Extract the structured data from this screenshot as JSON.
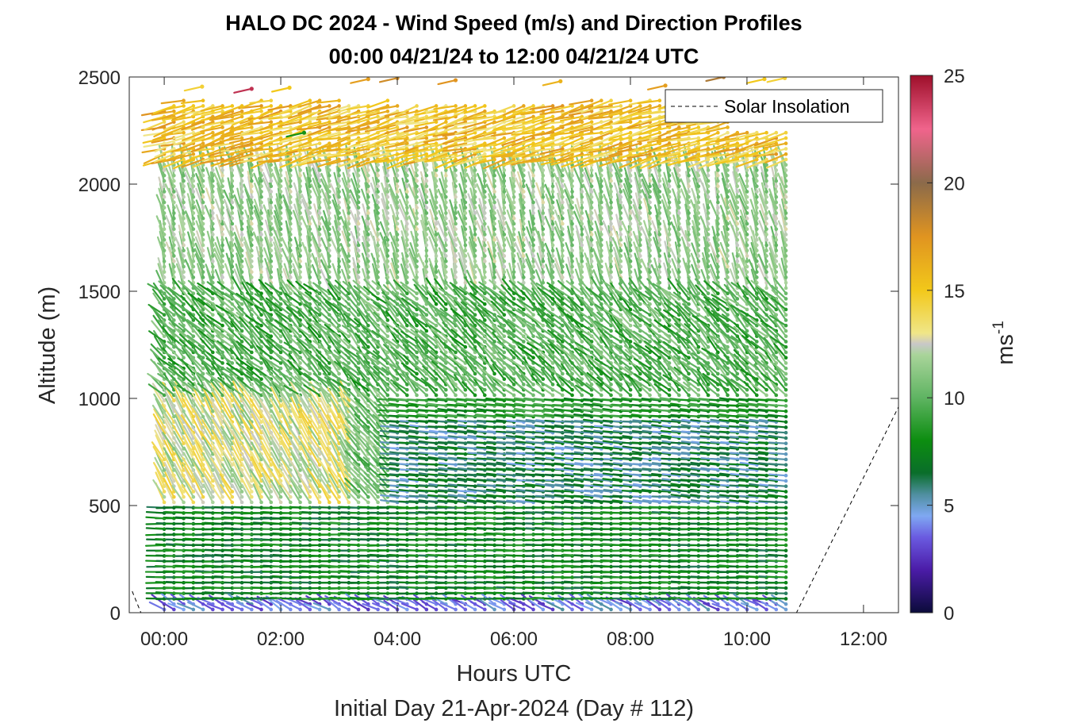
{
  "chart_data": {
    "type": "wind-barb-profile",
    "title_line1": "HALO DC 2024 - Wind Speed (m/s) and Direction Profiles",
    "title_line2": "00:00 04/21/24 to 12:00 04/21/24  UTC",
    "xlabel": "Hours UTC",
    "xlabel2": "Initial Day 21-Apr-2024 (Day # 112)",
    "ylabel": "Altitude (m)",
    "xlim": [
      -0.6,
      12.6
    ],
    "ylim": [
      0,
      2500
    ],
    "xticks": [
      0,
      2,
      4,
      6,
      8,
      10,
      12
    ],
    "xticklabels": [
      "00:00",
      "02:00",
      "04:00",
      "06:00",
      "08:00",
      "10:00",
      "12:00"
    ],
    "yticks": [
      0,
      500,
      1000,
      1500,
      2000,
      2500
    ],
    "yticklabels": [
      "0",
      "500",
      "1000",
      "1500",
      "2000",
      "2500"
    ],
    "colorbar": {
      "label_base": "ms",
      "label_exp": "-1",
      "ticks": [
        0,
        5,
        10,
        15,
        20,
        25
      ],
      "ticklabels": [
        "0",
        "5",
        "10",
        "15",
        "20",
        "25"
      ],
      "range": [
        0,
        25
      ],
      "stops": [
        {
          "v": 0,
          "c": "#0b0b3a"
        },
        {
          "v": 2,
          "c": "#4b1ca8"
        },
        {
          "v": 3.5,
          "c": "#6a5ae0"
        },
        {
          "v": 4.5,
          "c": "#7fa8f2"
        },
        {
          "v": 5.5,
          "c": "#4f8fa0"
        },
        {
          "v": 6.5,
          "c": "#0a6e2a"
        },
        {
          "v": 8,
          "c": "#0c8d10"
        },
        {
          "v": 10,
          "c": "#5fb462"
        },
        {
          "v": 12,
          "c": "#a9d49a"
        },
        {
          "v": 12.5,
          "c": "#c8c8c8"
        },
        {
          "v": 13,
          "c": "#f0e688"
        },
        {
          "v": 15,
          "c": "#f2c81a"
        },
        {
          "v": 17.5,
          "c": "#e09420"
        },
        {
          "v": 20,
          "c": "#8b6a4a"
        },
        {
          "v": 22.5,
          "c": "#f0648c"
        },
        {
          "v": 25,
          "c": "#9e0f2a"
        }
      ]
    },
    "legend": {
      "entries": [
        "Solar Insolation"
      ],
      "location": "top-right"
    },
    "grid": false,
    "profile_start_time": 0,
    "profile_end_time": 10.8,
    "profile_spacing_hours": 0.1667,
    "level_spacing_m": 25,
    "series": [
      {
        "name": "Solar Insolation",
        "style": "dashed",
        "color": "#000000",
        "x": [
          -0.55,
          -0.4,
          -0.3,
          10.85,
          12.6
        ],
        "y": [
          100,
          0,
          0,
          0,
          960
        ]
      }
    ],
    "wind_regimes": [
      {
        "alt_max": 60,
        "speed_range": [
          2,
          5
        ],
        "direction": "from-southwest"
      },
      {
        "alt_max": 500,
        "speed_range": [
          6,
          9
        ],
        "direction": "from-east"
      },
      {
        "alt_max": 1000,
        "speed_range": [
          7,
          13
        ],
        "direction": "from-north-northeast"
      },
      {
        "alt_max": 1500,
        "speed_range": [
          8,
          12
        ],
        "direction": "from-north"
      },
      {
        "alt_max": 2100,
        "speed_range": [
          10,
          13
        ],
        "direction": "from-northwest"
      },
      {
        "alt_max": 2500,
        "speed_range": [
          13,
          18
        ],
        "direction": "from-northwest"
      }
    ]
  }
}
